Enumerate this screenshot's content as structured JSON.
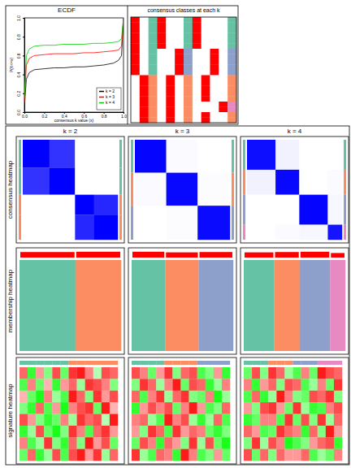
{
  "layout_labels": {
    "columns": [
      "k = 2",
      "k = 3",
      "k = 4"
    ],
    "rows": [
      "consensus heatmap",
      "membership heatmap",
      "signature heatmap"
    ]
  },
  "chart_data": [
    {
      "type": "line",
      "title": "ECDF",
      "x_label": "consensus k value (x)",
      "y_label": "P(X<=x)",
      "xlim": [
        0,
        1
      ],
      "ylim": [
        0,
        1
      ],
      "xticks": [
        {
          "value": 0,
          "label": "0.0"
        },
        {
          "value": 0.2,
          "label": "0.2"
        },
        {
          "value": 0.4,
          "label": "0.4"
        },
        {
          "value": 0.6,
          "label": "0.6"
        },
        {
          "value": 0.8,
          "label": "0.8"
        },
        {
          "value": 1,
          "label": "1.0"
        }
      ],
      "yticks": [
        {
          "value": 0,
          "label": "0.0"
        },
        {
          "value": 0.2,
          "label": "0.2"
        },
        {
          "value": 0.4,
          "label": "0.4"
        },
        {
          "value": 0.6,
          "label": "0.6"
        },
        {
          "value": 0.8,
          "label": "0.8"
        },
        {
          "value": 1,
          "label": "1.0"
        }
      ],
      "legend": "bottomright",
      "x": [
        0,
        0.02,
        0.05,
        0.1,
        0.2,
        0.3,
        0.4,
        0.5,
        0.6,
        0.7,
        0.8,
        0.9,
        0.95,
        0.98,
        1.0
      ],
      "series": [
        {
          "name": "k = 2",
          "color": "#000000",
          "values": [
            0.05,
            0.35,
            0.42,
            0.45,
            0.46,
            0.47,
            0.47,
            0.48,
            0.48,
            0.49,
            0.5,
            0.52,
            0.55,
            0.6,
            1.0
          ]
        },
        {
          "name": "k = 3",
          "color": "#FF0000",
          "values": [
            0.1,
            0.5,
            0.57,
            0.6,
            0.61,
            0.62,
            0.62,
            0.62,
            0.63,
            0.63,
            0.64,
            0.65,
            0.66,
            0.7,
            1.0
          ]
        },
        {
          "name": "k = 4",
          "color": "#00CD00",
          "values": [
            0.15,
            0.6,
            0.67,
            0.7,
            0.71,
            0.71,
            0.72,
            0.72,
            0.72,
            0.73,
            0.73,
            0.74,
            0.75,
            0.78,
            1.0
          ]
        }
      ]
    },
    {
      "type": "class_matrix",
      "title": "consensus classes at each k",
      "k": [
        2,
        3,
        4
      ],
      "color": "#FF0000",
      "colors": [
        "#66C2A5",
        "#FC8D62",
        "#8DA0CB",
        "#E78AC3"
      ],
      "class_by_k": [
        [
          1,
          1,
          1,
          1,
          1,
          1,
          1,
          1,
          1,
          1,
          1,
          2,
          2,
          2,
          2,
          2,
          2,
          2,
          2,
          2
        ],
        [
          1,
          1,
          1,
          1,
          1,
          1,
          3,
          3,
          3,
          3,
          3,
          2,
          2,
          2,
          2,
          2,
          2,
          2,
          2,
          2
        ],
        [
          1,
          1,
          1,
          1,
          1,
          1,
          3,
          3,
          3,
          3,
          3,
          2,
          2,
          2,
          2,
          2,
          4,
          4,
          2,
          2
        ]
      ]
    },
    {
      "type": "consensus_heatmap",
      "colors": [
        "#66C2A5",
        "#FC8D62",
        "#8DA0CB",
        "#E78AC3"
      ],
      "color_scale": [
        "#FFFFFF",
        "#0000FF"
      ],
      "value_range": [
        0,
        1
      ],
      "group_sizes": [
        28,
        27,
        20,
        25
      ],
      "group_classes": [
        1,
        1,
        2,
        2
      ],
      "values": [
        [
          1,
          0.8,
          0,
          0
        ],
        [
          0.8,
          1,
          0,
          0
        ],
        [
          0,
          0,
          1,
          0.85
        ],
        [
          0,
          0,
          0.85,
          1
        ]
      ]
    },
    {
      "type": "consensus_heatmap",
      "colors": [
        "#66C2A5",
        "#FC8D62",
        "#8DA0CB",
        "#E78AC3"
      ],
      "color_scale": [
        "#FFFFFF",
        "#0000FF"
      ],
      "value_range": [
        0,
        1
      ],
      "group_sizes": [
        33,
        33,
        34
      ],
      "group_classes": [
        1,
        2,
        3
      ],
      "values": [
        [
          0.98,
          0.02,
          0
        ],
        [
          0.02,
          0.97,
          0.01
        ],
        [
          0,
          0.01,
          0.96
        ]
      ]
    },
    {
      "type": "consensus_heatmap",
      "colors": [
        "#66C2A5",
        "#FC8D62",
        "#8DA0CB",
        "#E78AC3"
      ],
      "color_scale": [
        "#FFFFFF",
        "#0000FF"
      ],
      "value_range": [
        0,
        1
      ],
      "group_sizes": [
        30,
        25,
        30,
        15
      ],
      "group_classes": [
        1,
        2,
        3,
        4
      ],
      "values": [
        [
          0.95,
          0.05,
          0,
          0
        ],
        [
          0.05,
          0.97,
          0,
          0.02
        ],
        [
          0,
          0,
          0.98,
          0.03
        ],
        [
          0,
          0.02,
          0.03,
          0.92
        ]
      ]
    },
    {
      "type": "membership_heatmap",
      "colors": [
        "#66C2A5",
        "#FC8D62",
        "#8DA0CB",
        "#E78AC3"
      ],
      "color": "#FF0000",
      "silhouette_range": [
        0,
        1
      ],
      "segment_sizes": [
        55,
        45
      ],
      "segment_classes": [
        1,
        2
      ],
      "silhouette": [
        0.85,
        0.9
      ]
    },
    {
      "type": "membership_heatmap",
      "colors": [
        "#66C2A5",
        "#FC8D62",
        "#8DA0CB",
        "#E78AC3"
      ],
      "color": "#FF0000",
      "silhouette_range": [
        0,
        1
      ],
      "segment_sizes": [
        33,
        33,
        34
      ],
      "segment_classes": [
        1,
        2,
        3
      ],
      "silhouette": [
        0.9,
        0.8,
        0.85
      ]
    },
    {
      "type": "membership_heatmap",
      "colors": [
        "#66C2A5",
        "#FC8D62",
        "#8DA0CB",
        "#E78AC3"
      ],
      "color": "#FF0000",
      "silhouette_range": [
        0,
        1
      ],
      "segment_sizes": [
        30,
        25,
        30,
        15
      ],
      "segment_classes": [
        1,
        2,
        3,
        4
      ],
      "silhouette": [
        0.8,
        0.85,
        0.9,
        0.7
      ]
    },
    {
      "type": "signature_heatmap",
      "colors": [
        "#66C2A5",
        "#FC8D62",
        "#8DA0CB",
        "#E78AC3"
      ],
      "color_scale": [
        "#00FF00",
        "#FFFFFF",
        "#FF0000"
      ],
      "value_range": [
        -1,
        1
      ],
      "column_classes": [
        1,
        1,
        1,
        1,
        1,
        1,
        2,
        2,
        2,
        2,
        2,
        2
      ],
      "values": [
        [
          0.6,
          -0.8,
          0.4,
          -0.5,
          0.7,
          -0.6,
          0.8,
          0.9,
          0.5,
          -0.3,
          0.7,
          0.6
        ],
        [
          -0.7,
          0.5,
          -0.6,
          0.3,
          -0.8,
          0.4,
          0.6,
          -0.4,
          0.8,
          0.7,
          0.5,
          -0.5
        ],
        [
          0.3,
          -0.6,
          -0.9,
          0.5,
          -0.4,
          -0.7,
          0.9,
          0.6,
          -0.5,
          0.8,
          0.4,
          0.7
        ],
        [
          -0.5,
          -0.8,
          0.6,
          -0.7,
          0.4,
          -0.9,
          0.5,
          0.7,
          0.8,
          -0.6,
          0.9,
          0.3
        ],
        [
          0.7,
          0.4,
          -0.5,
          -0.8,
          -0.6,
          0.5,
          -0.4,
          0.8,
          0.6,
          0.7,
          -0.3,
          0.9
        ],
        [
          -0.8,
          -0.4,
          0.7,
          -0.6,
          -0.9,
          -0.5,
          0.8,
          0.5,
          -0.7,
          0.6,
          0.8,
          0.4
        ],
        [
          0.5,
          -0.7,
          -0.4,
          0.8,
          -0.5,
          -0.8,
          0.6,
          -0.5,
          0.9,
          0.4,
          0.7,
          -0.6
        ],
        [
          -0.6,
          0.6,
          -0.8,
          -0.4,
          0.7,
          -0.7,
          0.7,
          0.9,
          0.4,
          0.8,
          -0.4,
          0.6
        ]
      ]
    },
    {
      "type": "signature_heatmap",
      "colors": [
        "#66C2A5",
        "#FC8D62",
        "#8DA0CB",
        "#E78AC3"
      ],
      "color_scale": [
        "#00FF00",
        "#FFFFFF",
        "#FF0000"
      ],
      "value_range": [
        -1,
        1
      ],
      "column_classes": [
        1,
        1,
        1,
        1,
        2,
        2,
        2,
        2,
        3,
        3,
        3,
        3
      ],
      "values": [
        [
          0.7,
          0.5,
          -0.6,
          0.4,
          0.8,
          -0.5,
          0.6,
          0.7,
          -0.7,
          -0.5,
          0.4,
          -0.8
        ],
        [
          -0.5,
          0.8,
          0.6,
          -0.4,
          0.5,
          0.9,
          -0.6,
          0.7,
          0.6,
          -0.8,
          -0.4,
          0.5
        ],
        [
          0.6,
          -0.7,
          0.5,
          0.8,
          -0.4,
          0.6,
          0.8,
          -0.5,
          -0.6,
          0.5,
          -0.9,
          -0.4
        ],
        [
          -0.8,
          0.4,
          0.7,
          0.5,
          0.7,
          -0.6,
          0.5,
          0.9,
          0.4,
          -0.7,
          -0.5,
          0.6
        ],
        [
          0.5,
          0.6,
          -0.4,
          -0.7,
          0.9,
          0.5,
          0.7,
          -0.4,
          -0.8,
          -0.4,
          0.6,
          -0.7
        ],
        [
          0.4,
          -0.5,
          0.8,
          0.6,
          -0.7,
          0.8,
          0.4,
          0.6,
          0.5,
          -0.6,
          -0.8,
          -0.5
        ],
        [
          -0.6,
          0.7,
          0.5,
          -0.8,
          0.6,
          0.4,
          -0.5,
          0.8,
          -0.4,
          0.7,
          -0.6,
          -0.9
        ],
        [
          0.8,
          -0.4,
          -0.7,
          0.6,
          0.5,
          -0.8,
          0.9,
          0.5,
          -0.7,
          -0.5,
          0.4,
          -0.6
        ]
      ]
    },
    {
      "type": "signature_heatmap",
      "colors": [
        "#66C2A5",
        "#FC8D62",
        "#8DA0CB",
        "#E78AC3"
      ],
      "color_scale": [
        "#00FF00",
        "#FFFFFF",
        "#FF0000"
      ],
      "value_range": [
        -1,
        1
      ],
      "column_classes": [
        1,
        1,
        1,
        2,
        2,
        2,
        3,
        3,
        3,
        4,
        4,
        4
      ],
      "values": [
        [
          -0.6,
          0.7,
          -0.5,
          0.8,
          0.6,
          -0.4,
          -0.7,
          0.5,
          -0.6,
          0.9,
          0.7,
          0.6
        ],
        [
          0.5,
          -0.8,
          0.4,
          0.6,
          -0.5,
          0.7,
          0.6,
          -0.7,
          -0.4,
          0.5,
          -0.6,
          0.8
        ],
        [
          -0.7,
          0.6,
          -0.8,
          -0.4,
          0.9,
          0.5,
          -0.5,
          -0.6,
          0.7,
          0.6,
          0.8,
          -0.5
        ],
        [
          0.4,
          -0.5,
          0.7,
          0.8,
          0.4,
          -0.6,
          0.8,
          -0.4,
          -0.8,
          -0.7,
          0.5,
          0.7
        ],
        [
          -0.8,
          -0.6,
          0.5,
          0.5,
          -0.7,
          0.8,
          -0.6,
          0.7,
          -0.5,
          0.8,
          -0.4,
          0.6
        ],
        [
          0.6,
          0.4,
          -0.7,
          -0.6,
          0.8,
          0.6,
          0.5,
          -0.8,
          0.6,
          -0.5,
          0.9,
          0.4
        ],
        [
          -0.5,
          0.8,
          -0.4,
          0.7,
          0.5,
          -0.9,
          -0.7,
          -0.5,
          0.4,
          0.6,
          0.7,
          -0.8
        ],
        [
          0.7,
          -0.6,
          0.6,
          -0.5,
          0.6,
          0.4,
          0.4,
          0.6,
          -0.7,
          -0.4,
          -0.6,
          0.5
        ]
      ]
    }
  ]
}
